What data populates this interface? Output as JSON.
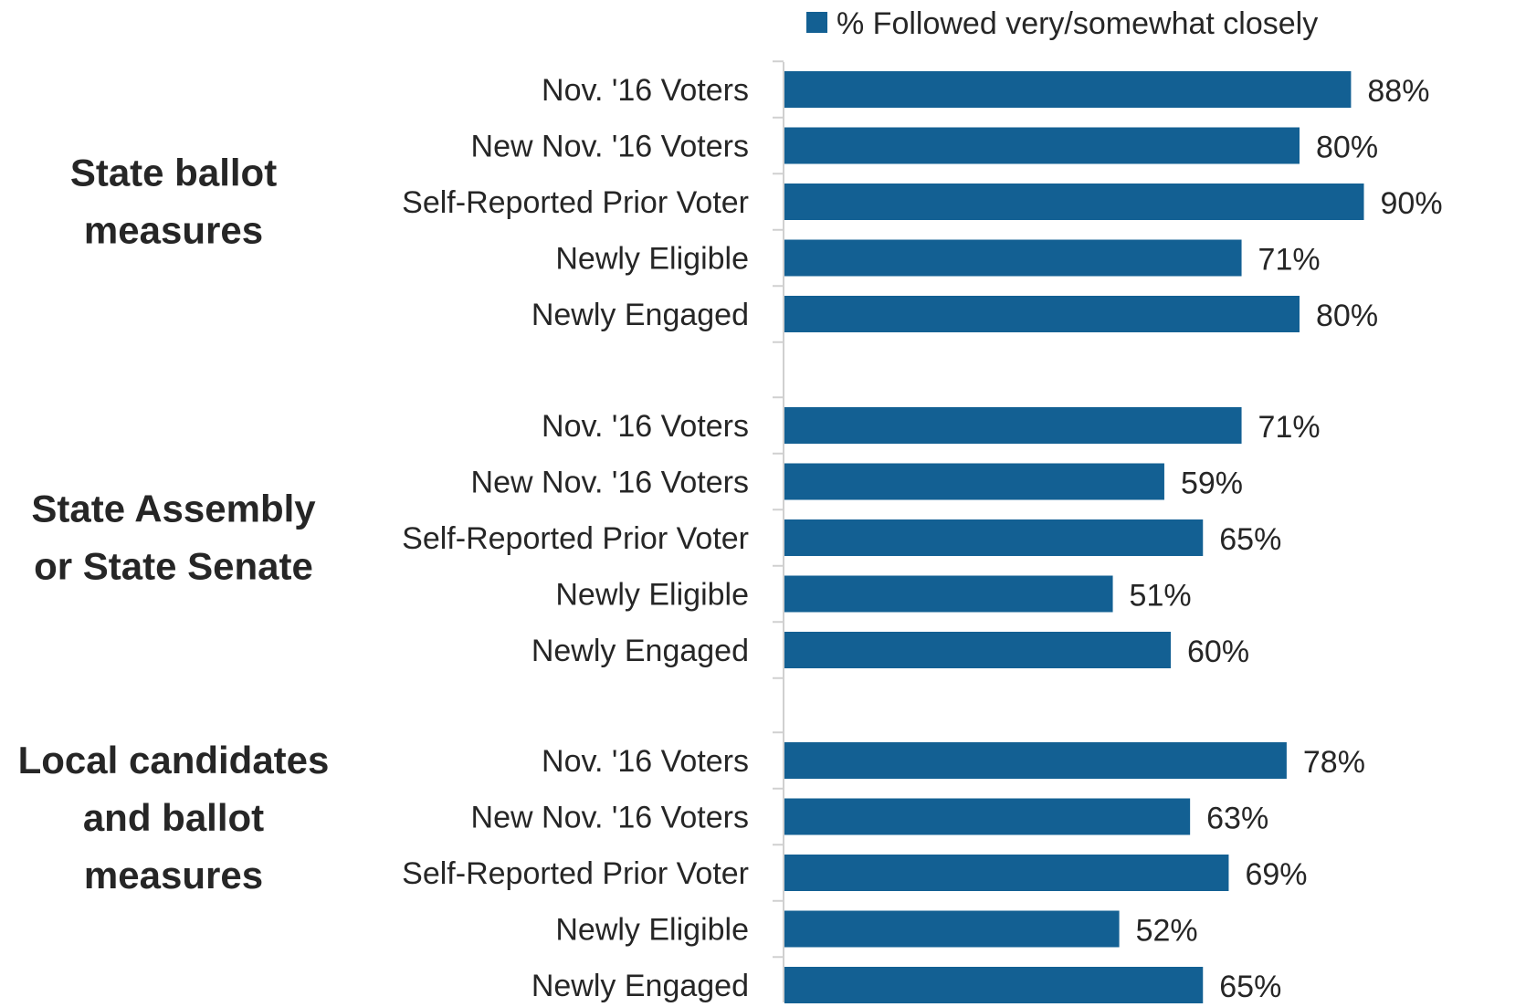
{
  "chart_data": {
    "type": "bar",
    "orientation": "horizontal",
    "legend": {
      "position": "top",
      "entries": [
        "% Followed very/somewhat closely"
      ]
    },
    "xlim": [
      0,
      100
    ],
    "grid": false,
    "colors": {
      "bar": "#136093",
      "axis": "#d0d0d0",
      "text": "#262626"
    },
    "groups": [
      {
        "name": [
          "State ballot",
          "measures"
        ],
        "categories": [
          "Nov. '16 Voters",
          "New Nov. '16 Voters",
          "Self-Reported Prior Voter",
          "Newly Eligible",
          "Newly Engaged"
        ],
        "values": [
          88,
          80,
          90,
          71,
          80
        ],
        "labels": [
          "88%",
          "80%",
          "90%",
          "71%",
          "80%"
        ]
      },
      {
        "name": [
          "State Assembly",
          "or State Senate"
        ],
        "categories": [
          "Nov. '16 Voters",
          "New Nov. '16 Voters",
          "Self-Reported Prior Voter",
          "Newly Eligible",
          "Newly Engaged"
        ],
        "values": [
          71,
          59,
          65,
          51,
          60
        ],
        "labels": [
          "71%",
          "59%",
          "65%",
          "51%",
          "60%"
        ]
      },
      {
        "name": [
          "Local candidates",
          "and ballot",
          "measures"
        ],
        "categories": [
          "Nov. '16 Voters",
          "New Nov. '16 Voters",
          "Self-Reported Prior Voter",
          "Newly Eligible",
          "Newly Engaged"
        ],
        "values": [
          78,
          63,
          69,
          52,
          65
        ],
        "labels": [
          "78%",
          "63%",
          "69%",
          "52%",
          "65%"
        ]
      }
    ]
  }
}
